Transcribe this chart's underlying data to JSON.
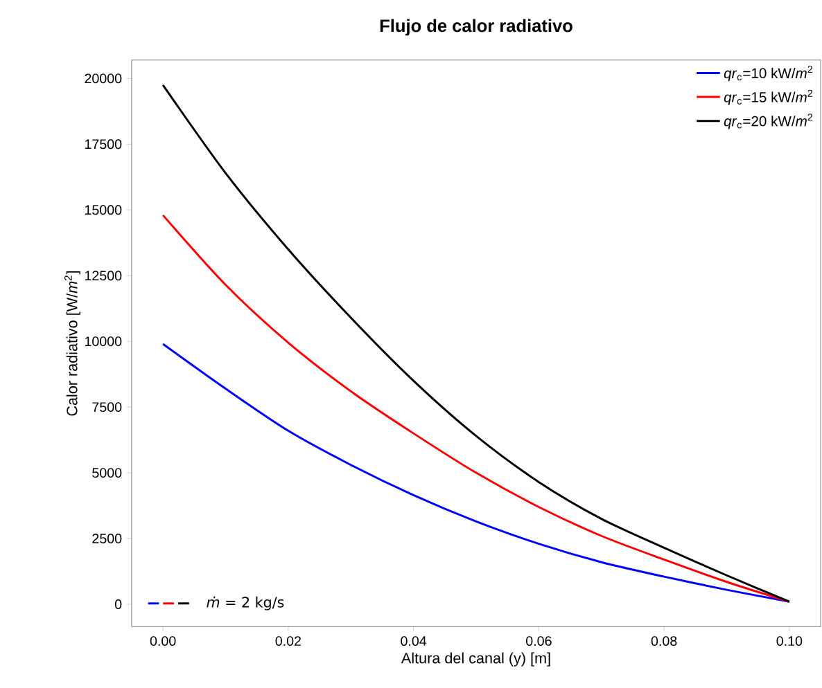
{
  "chart_data": {
    "type": "line",
    "title": "Flujo de calor radiativo",
    "xlabel": "Altura del canal (y) [m]",
    "ylabel": "Calor radiativo [W/*m*$^{2}$]",
    "x": [
      0,
      0.01,
      0.02,
      0.03,
      0.04,
      0.05,
      0.06,
      0.07,
      0.08,
      0.09,
      0.1
    ],
    "series": [
      {
        "name": "*qr*$_{c}$=10 kW/*m*$^{2}$",
        "color": "#0000ff",
        "values": [
          9900,
          8200,
          6600,
          5300,
          4150,
          3150,
          2300,
          1600,
          1050,
          550,
          100
        ]
      },
      {
        "name": "*qr*$_{c}$=15 kW/*m*$^{2}$",
        "color": "#ff0000",
        "values": [
          14800,
          12150,
          9950,
          8100,
          6500,
          5000,
          3700,
          2600,
          1700,
          850,
          100
        ]
      },
      {
        "name": "*qr*$_{c}$=20 kW/*m*$^{2}$",
        "color": "#000000",
        "values": [
          19750,
          16400,
          13500,
          10900,
          8500,
          6400,
          4650,
          3250,
          2150,
          1100,
          100
        ]
      }
    ],
    "xlim": [
      -0.005,
      0.105
    ],
    "ylim": [
      -850,
      20700
    ],
    "xticks": [
      {
        "value": 0,
        "label": "0.00"
      },
      {
        "value": 0.02,
        "label": "0.02"
      },
      {
        "value": 0.04,
        "label": "0.04"
      },
      {
        "value": 0.06,
        "label": "0.06"
      },
      {
        "value": 0.08,
        "label": "0.08"
      },
      {
        "value": 0.1,
        "label": "0.10"
      }
    ],
    "yticks": [
      0,
      2500,
      5000,
      7500,
      10000,
      12500,
      15000,
      17500,
      20000
    ],
    "grid": false,
    "legend": "top right",
    "marker": "none",
    "line_style": "solid",
    "annotations": [
      "*ṁ* = 2 kg/s"
    ]
  }
}
